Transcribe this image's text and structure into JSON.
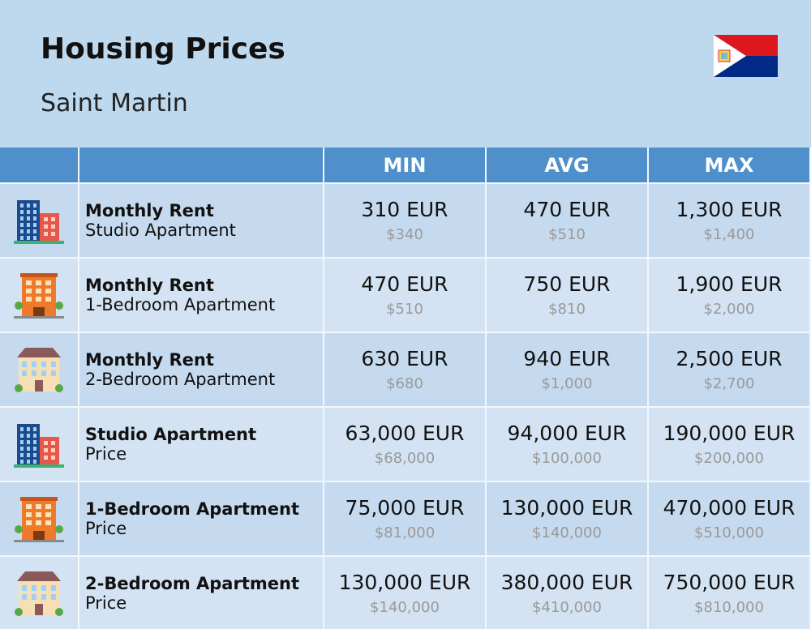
{
  "header": {
    "title": "Housing Prices",
    "subtitle": "Saint Martin"
  },
  "table": {
    "columns": [
      "MIN",
      "AVG",
      "MAX"
    ],
    "rows": [
      {
        "title": "Monthly Rent",
        "subtitle": "Studio Apartment",
        "values": [
          [
            "310 EUR",
            "$340"
          ],
          [
            "470 EUR",
            "$510"
          ],
          [
            "1,300 EUR",
            "$1,400"
          ]
        ]
      },
      {
        "title": "Monthly Rent",
        "subtitle": "1-Bedroom Apartment",
        "values": [
          [
            "470 EUR",
            "$510"
          ],
          [
            "750 EUR",
            "$810"
          ],
          [
            "1,900 EUR",
            "$2,000"
          ]
        ]
      },
      {
        "title": "Monthly Rent",
        "subtitle": "2-Bedroom Apartment",
        "values": [
          [
            "630 EUR",
            "$680"
          ],
          [
            "940 EUR",
            "$1,000"
          ],
          [
            "2,500 EUR",
            "$2,700"
          ]
        ]
      },
      {
        "title": "Studio Apartment",
        "subtitle": "Price",
        "values": [
          [
            "63,000 EUR",
            "$68,000"
          ],
          [
            "94,000 EUR",
            "$100,000"
          ],
          [
            "190,000 EUR",
            "$200,000"
          ]
        ]
      },
      {
        "title": "1-Bedroom Apartment",
        "subtitle": "Price",
        "values": [
          [
            "75,000 EUR",
            "$81,000"
          ],
          [
            "130,000 EUR",
            "$140,000"
          ],
          [
            "470,000 EUR",
            "$510,000"
          ]
        ]
      },
      {
        "title": "2-Bedroom Apartment",
        "subtitle": "Price",
        "values": [
          [
            "130,000 EUR",
            "$140,000"
          ],
          [
            "380,000 EUR",
            "$410,000"
          ],
          [
            "750,000 EUR",
            "$810,000"
          ]
        ]
      }
    ]
  }
}
